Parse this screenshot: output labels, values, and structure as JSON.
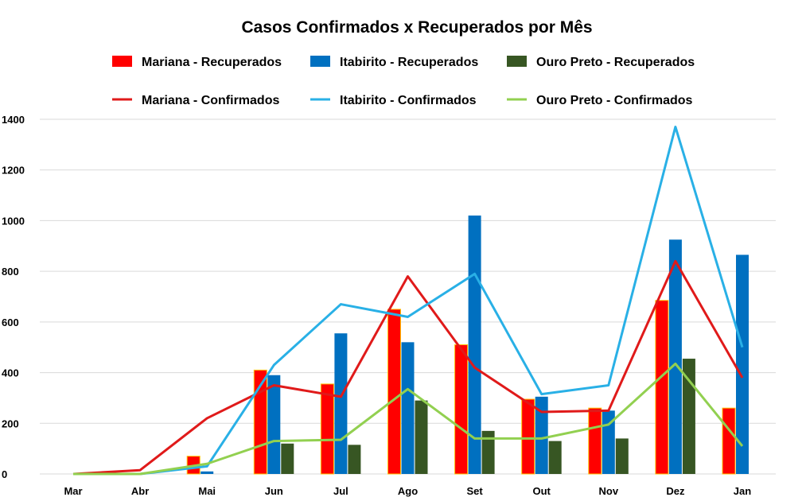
{
  "chart_data": {
    "type": "bar",
    "title": "Casos Confirmados x Recuperados por Mês",
    "xlabel": "",
    "ylabel": "",
    "ylim": [
      0,
      1400
    ],
    "yticks": [
      0,
      200,
      400,
      600,
      800,
      1000,
      1200,
      1400
    ],
    "grid": true,
    "legend_position": "top",
    "categories": [
      "Mar",
      "Abr",
      "Mai",
      "Jun",
      "Jul",
      "Ago",
      "Set",
      "Out",
      "Nov",
      "Dez",
      "Jan"
    ],
    "bar_series": [
      {
        "name": "Mariana - Recuperados",
        "color": "#ff0000",
        "values": [
          0,
          0,
          70,
          410,
          355,
          650,
          510,
          295,
          260,
          685,
          260
        ]
      },
      {
        "name": "Itabirito - Recuperados",
        "color": "#0070c0",
        "values": [
          0,
          0,
          10,
          390,
          555,
          520,
          1020,
          305,
          250,
          925,
          865
        ]
      },
      {
        "name": "Ouro Preto - Recuperados",
        "color": "#375623",
        "values": [
          0,
          0,
          0,
          120,
          115,
          290,
          170,
          130,
          140,
          455,
          0
        ]
      }
    ],
    "line_series": [
      {
        "name": "Mariana - Confirmados",
        "color": "#e01a1a",
        "values": [
          0,
          15,
          220,
          350,
          305,
          780,
          420,
          245,
          250,
          840,
          380
        ]
      },
      {
        "name": "Itabirito - Confirmados",
        "color": "#29b0e6",
        "values": [
          0,
          0,
          30,
          430,
          670,
          620,
          790,
          315,
          350,
          1370,
          500
        ]
      },
      {
        "name": "Ouro Preto - Confirmados",
        "color": "#92d050",
        "values": [
          0,
          0,
          40,
          130,
          135,
          335,
          140,
          140,
          195,
          435,
          110
        ]
      }
    ]
  }
}
